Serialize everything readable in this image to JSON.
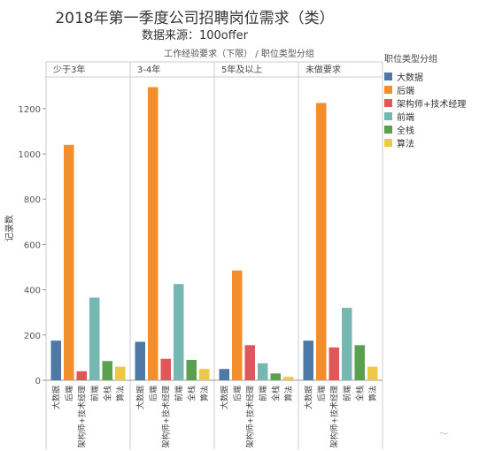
{
  "title": "2018年第一季度公司招聘岗位需求（类）",
  "subtitle": "数据来源：100offer",
  "header_label": "工作经验要求（下限） / 职位类型分组",
  "legend": {
    "title": "职位类型分组",
    "items": [
      {
        "label": "大数据",
        "color": "#4e79a7"
      },
      {
        "label": "后端",
        "color": "#f28e2b"
      },
      {
        "label": "架构师+技术经理",
        "color": "#e15759"
      },
      {
        "label": "前端",
        "color": "#76b7b2"
      },
      {
        "label": "全栈",
        "color": "#59a14f"
      },
      {
        "label": "算法",
        "color": "#edc948"
      }
    ]
  },
  "corner_mark": "〜",
  "chart_data": {
    "type": "bar",
    "ylabel": "记录数",
    "xlabel": "",
    "ylim": [
      0,
      1340
    ],
    "yticks": [
      0,
      200,
      400,
      600,
      800,
      1000,
      1200
    ],
    "grid": false,
    "legend_position": "right",
    "categories": [
      "大数据",
      "后端",
      "架构师+技术经理",
      "前端",
      "全栈",
      "算法"
    ],
    "panels": [
      {
        "name": "少于3年",
        "values": [
          175,
          1040,
          40,
          365,
          85,
          60
        ]
      },
      {
        "name": "3-4年",
        "values": [
          170,
          1295,
          95,
          425,
          90,
          50
        ]
      },
      {
        "name": "5年及以上",
        "values": [
          50,
          485,
          155,
          75,
          30,
          15
        ]
      },
      {
        "name": "未做要求",
        "values": [
          175,
          1225,
          145,
          320,
          155,
          60
        ]
      }
    ]
  }
}
